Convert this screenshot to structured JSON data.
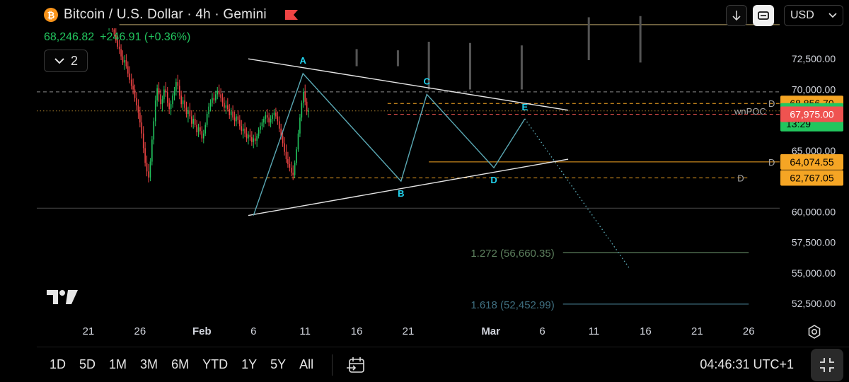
{
  "header": {
    "symbol_icon": "bitcoin-icon",
    "title": "Bitcoin / U.S. Dollar · 4h · Gemini",
    "flag_icon": "red-flag-icon",
    "last_price": "68,246.82",
    "change": "+246.91 (+0.36%)",
    "legend_count": "2",
    "legend_icon": "chevron-down-icon"
  },
  "toolbar": {
    "download_icon": "arrow-down-icon",
    "fullscreen_icon": "fullscreen-icon",
    "currency": "USD",
    "currency_icon": "chevron-down-icon"
  },
  "colors": {
    "background": "#000000",
    "candle_up": "#22c55e",
    "candle_down": "#ef4444",
    "wave": "#5aa8b4",
    "wave_label": "#22d3ee",
    "trendline": "#e5e5e5",
    "level_orange": "#f5a524",
    "price_green": "#22c55e",
    "price_red": "#ef5350",
    "fib": "#4a6b4f"
  },
  "chart_data": {
    "type": "candlestick",
    "xlabel": "",
    "ylabel": "",
    "y_ticks": [
      "72,500.00",
      "70,000.00",
      "65,000.00",
      "60,000.00",
      "57,500.00",
      "55,000.00",
      "52,500.00"
    ],
    "y_tick_values": [
      72500,
      70000,
      65000,
      60000,
      57500,
      55000,
      52500
    ],
    "x_ticks": [
      "21",
      "26",
      "Feb",
      "6",
      "11",
      "16",
      "21",
      "Mar",
      "6",
      "11",
      "16",
      "21",
      "26"
    ],
    "x_tick_values": [
      0,
      5,
      11,
      16,
      21,
      26,
      31,
      39,
      44,
      49,
      54,
      59,
      64
    ],
    "x_tick_bold": [
      "Feb",
      "Mar"
    ],
    "ylim": [
      51000,
      75000
    ],
    "xlim": [
      -5,
      67
    ],
    "candles": {
      "start": 2,
      "step": 0.1667,
      "ohlc": [
        [
          75100,
          75600,
          74800,
          75400
        ],
        [
          75400,
          75900,
          75000,
          75200
        ],
        [
          75200,
          75800,
          74700,
          74900
        ],
        [
          74900,
          75300,
          74300,
          74500
        ],
        [
          74500,
          75000,
          73800,
          74000
        ],
        [
          74000,
          74400,
          73300,
          73500
        ],
        [
          73500,
          74100,
          72900,
          73300
        ],
        [
          73300,
          73700,
          72400,
          72700
        ],
        [
          72700,
          73200,
          72000,
          72200
        ],
        [
          72200,
          72800,
          71600,
          72400
        ],
        [
          72400,
          72900,
          71700,
          71900
        ],
        [
          71900,
          72300,
          71000,
          71300
        ],
        [
          71300,
          71900,
          70500,
          70800
        ],
        [
          70800,
          71300,
          70000,
          70300
        ],
        [
          70300,
          70900,
          69600,
          70000
        ],
        [
          70000,
          70400,
          69000,
          69300
        ],
        [
          69300,
          69800,
          68300,
          68700
        ],
        [
          68700,
          69200,
          67600,
          68100
        ],
        [
          68100,
          68600,
          66900,
          67300
        ],
        [
          67300,
          67900,
          66000,
          66400
        ],
        [
          66400,
          67000,
          64800,
          65200
        ],
        [
          65200,
          65700,
          63700,
          64000
        ],
        [
          64000,
          64600,
          62900,
          63300
        ],
        [
          63300,
          63900,
          62400,
          62800
        ],
        [
          62800,
          64400,
          62500,
          64100
        ],
        [
          64100,
          66200,
          63800,
          65900
        ],
        [
          65900,
          67700,
          65500,
          67400
        ],
        [
          67400,
          69500,
          67000,
          69100
        ],
        [
          69100,
          70400,
          68600,
          70100
        ],
        [
          70100,
          70600,
          69000,
          69600
        ],
        [
          69600,
          70000,
          68400,
          68800
        ],
        [
          68800,
          69500,
          68200,
          69200
        ],
        [
          69200,
          70300,
          68900,
          70000
        ],
        [
          70000,
          70600,
          69400,
          69800
        ],
        [
          69800,
          70200,
          68600,
          68900
        ],
        [
          68900,
          69300,
          68000,
          68400
        ],
        [
          68400,
          69100,
          67900,
          68800
        ],
        [
          68800,
          69700,
          68500,
          69500
        ],
        [
          69500,
          70200,
          69100,
          69800
        ],
        [
          69800,
          70900,
          69500,
          70600
        ],
        [
          70600,
          71200,
          70000,
          70300
        ],
        [
          70300,
          70800,
          69200,
          69500
        ],
        [
          69500,
          69900,
          68500,
          68800
        ],
        [
          68800,
          69400,
          68300,
          69100
        ],
        [
          69100,
          69600,
          68200,
          68500
        ],
        [
          68500,
          69000,
          67700,
          68000
        ],
        [
          68000,
          68600,
          67300,
          68300
        ],
        [
          68300,
          68900,
          67600,
          67800
        ],
        [
          67800,
          68300,
          66900,
          67200
        ],
        [
          67200,
          67900,
          66800,
          67600
        ],
        [
          67600,
          68100,
          66900,
          67100
        ],
        [
          67100,
          67500,
          66200,
          66500
        ],
        [
          66500,
          67200,
          66100,
          66900
        ],
        [
          66900,
          67400,
          66300,
          66600
        ],
        [
          66600,
          67000,
          65700,
          66000
        ],
        [
          66000,
          66700,
          65600,
          66400
        ],
        [
          66400,
          67300,
          66200,
          67100
        ],
        [
          67100,
          68200,
          66900,
          68000
        ],
        [
          68000,
          68900,
          67700,
          68600
        ],
        [
          68600,
          69200,
          68200,
          68900
        ],
        [
          68900,
          69700,
          68600,
          69300
        ],
        [
          69300,
          69800,
          68800,
          69100
        ],
        [
          69100,
          69900,
          68900,
          69600
        ],
        [
          69600,
          70200,
          69200,
          69900
        ],
        [
          69900,
          70400,
          69400,
          69600
        ],
        [
          69600,
          70100,
          69000,
          69300
        ],
        [
          69300,
          69700,
          68600,
          68900
        ],
        [
          68900,
          69400,
          68200,
          68500
        ],
        [
          68500,
          69100,
          68000,
          68700
        ],
        [
          68700,
          69300,
          68200,
          68400
        ],
        [
          68400,
          68800,
          67600,
          67900
        ],
        [
          67900,
          68500,
          67400,
          68200
        ],
        [
          68200,
          68700,
          67500,
          67700
        ],
        [
          67700,
          68200,
          67000,
          67400
        ],
        [
          67400,
          68000,
          67000,
          67800
        ],
        [
          67800,
          68300,
          67200,
          67500
        ],
        [
          67500,
          67900,
          66700,
          67000
        ],
        [
          67000,
          67500,
          66300,
          66600
        ],
        [
          66600,
          67200,
          66000,
          66800
        ],
        [
          66800,
          67300,
          66100,
          66400
        ],
        [
          66400,
          66900,
          65700,
          66000
        ],
        [
          66000,
          66600,
          65500,
          66300
        ],
        [
          66300,
          66800,
          65800,
          66100
        ],
        [
          66100,
          66600,
          65400,
          65700
        ],
        [
          65700,
          66300,
          65200,
          66000
        ],
        [
          66000,
          66500,
          65500,
          65800
        ],
        [
          65800,
          66400,
          65300,
          66200
        ],
        [
          66200,
          66900,
          66000,
          66700
        ],
        [
          66700,
          67300,
          66400,
          67000
        ],
        [
          67000,
          67600,
          66700,
          67300
        ],
        [
          67300,
          67800,
          66900,
          67600
        ],
        [
          67600,
          68200,
          67200,
          67900
        ],
        [
          67900,
          68400,
          67300,
          67700
        ],
        [
          67700,
          68100,
          67000,
          67300
        ],
        [
          67300,
          67900,
          66900,
          67600
        ],
        [
          67600,
          68100,
          67200,
          67900
        ],
        [
          67900,
          68400,
          67400,
          68100
        ],
        [
          68100,
          68500,
          67600,
          67800
        ],
        [
          67800,
          68200,
          67100,
          67400
        ],
        [
          67400,
          67800,
          66500,
          66800
        ],
        [
          66800,
          67200,
          65900,
          66200
        ],
        [
          66200,
          66700,
          65300,
          65600
        ],
        [
          65600,
          66100,
          64600,
          64900
        ],
        [
          64900,
          65500,
          64000,
          64300
        ],
        [
          64300,
          64900,
          63600,
          63900
        ],
        [
          63900,
          64500,
          63300,
          63600
        ],
        [
          63600,
          64100,
          62900,
          63200
        ],
        [
          63200,
          63800,
          62600,
          63000
        ],
        [
          63000,
          64200,
          62800,
          64000
        ],
        [
          64000,
          65300,
          63800,
          65100
        ],
        [
          65100,
          66700,
          64900,
          66400
        ],
        [
          66400,
          68000,
          66100,
          67700
        ],
        [
          67700,
          69100,
          67400,
          68900
        ],
        [
          68900,
          70100,
          68500,
          69800
        ],
        [
          69800,
          70400,
          68700,
          69000
        ],
        [
          69000,
          69300,
          67900,
          68200
        ],
        [
          68200,
          68500,
          67700,
          68246.82
        ]
      ]
    },
    "wave_points": [
      {
        "label": "",
        "x": 16,
        "y": 59700
      },
      {
        "label": "A",
        "x": 20.8,
        "y": 71300
      },
      {
        "label": "B",
        "x": 30.3,
        "y": 62500
      },
      {
        "label": "C",
        "x": 32.8,
        "y": 69600
      },
      {
        "label": "D",
        "x": 39.3,
        "y": 63600
      },
      {
        "label": "E",
        "x": 42.3,
        "y": 67600
      }
    ],
    "projection": {
      "from": {
        "x": 42.3,
        "y": 67600
      },
      "to": {
        "x": 52.5,
        "y": 55300
      }
    },
    "trendlines": [
      {
        "name": "upper",
        "from": {
          "x": 15.5,
          "y": 72500
        },
        "to": {
          "x": 46.5,
          "y": 68300
        }
      },
      {
        "name": "lower",
        "from": {
          "x": 15.5,
          "y": 59700
        },
        "to": {
          "x": 46.5,
          "y": 64300
        }
      }
    ],
    "levels": [
      {
        "label": "",
        "value": 75300,
        "style": "solid",
        "color": "#b9a36a",
        "x_from": 3,
        "x_to": 67
      },
      {
        "label": "",
        "value": 69800,
        "style": "dashed",
        "color": "#8a8a8a",
        "x_from": -5,
        "x_to": 67
      },
      {
        "label": "D",
        "value": 68856.7,
        "style": "dashed",
        "color": "#f5a524",
        "x_from": 29,
        "x_to": 67
      },
      {
        "label": "wnPOC",
        "value": 68246.82,
        "style": "dotted",
        "color": "#a67c2a",
        "x_from": -5,
        "x_to": 67
      },
      {
        "label": "",
        "value": 67975,
        "style": "dashed",
        "color": "#ef5350",
        "x_from": 29,
        "x_to": 67
      },
      {
        "label": "D",
        "value": 64074.55,
        "style": "solid",
        "color": "#f5a524",
        "x_from": 33,
        "x_to": 67
      },
      {
        "label": "D",
        "value": 62767.05,
        "style": "dashed",
        "color": "#f5a524",
        "x_from": 16,
        "x_to": 64
      },
      {
        "label": "",
        "value": 60300,
        "style": "solid",
        "color": "#4a4a4a",
        "x_from": -5,
        "x_to": 67
      }
    ],
    "fib_levels": [
      {
        "label": "1.272 (56,660.35)",
        "value": 56660.35,
        "color": "#5c7f5d",
        "x_from": 46,
        "x_to": 64
      },
      {
        "label": "1.618 (52,452.99)",
        "value": 52452.99,
        "color": "#3f6f80",
        "x_from": 46,
        "x_to": 64
      }
    ],
    "price_tags": [
      {
        "text": "68,856.70",
        "value": 68856.7,
        "bg": "#f5a524",
        "fg": "#000000"
      },
      {
        "text": "68,246.82",
        "sub": "13:29",
        "value": 68246.82,
        "bg": "#22c55e",
        "fg": "#000000"
      },
      {
        "text": "67,975.00",
        "value": 67975,
        "bg": "#ef5350",
        "fg": "#ffffff"
      },
      {
        "text": "64,074.55",
        "value": 64074.55,
        "bg": "#f5a524",
        "fg": "#000000"
      },
      {
        "text": "62,767.05",
        "value": 62767.05,
        "bg": "#f5a524",
        "fg": "#000000"
      }
    ],
    "future_markers": [
      {
        "x": 26,
        "top": 73300,
        "bottom": 71900
      },
      {
        "x": 30,
        "top": 73200,
        "bottom": 71900
      },
      {
        "x": 33,
        "top": 73900,
        "bottom": 70000
      },
      {
        "x": 37,
        "top": 73800,
        "bottom": 70000
      },
      {
        "x": 42,
        "top": 73600,
        "bottom": 70000
      },
      {
        "x": 48.5,
        "top": 75900,
        "bottom": 72400
      },
      {
        "x": 53.5,
        "top": 76000,
        "bottom": 72200
      }
    ]
  },
  "bottom": {
    "ranges": [
      "1D",
      "5D",
      "1M",
      "3M",
      "6M",
      "YTD",
      "1Y",
      "5Y",
      "All"
    ],
    "calendar_icon": "calendar-goto-icon",
    "clock": "04:46:31 UTC+1",
    "expand_icon": "collapse-arrows-icon",
    "settings_icon": "settings-gear-icon",
    "logo_icon": "tradingview-logo-icon"
  }
}
